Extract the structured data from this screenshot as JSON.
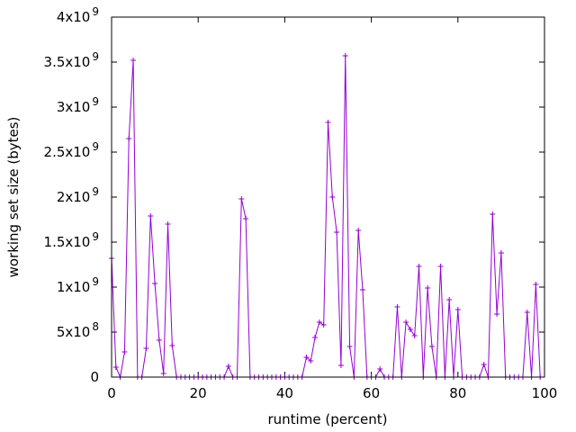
{
  "chart_data": {
    "type": "line",
    "xlabel": "runtime (percent)",
    "ylabel": "working set size (bytes)",
    "xlim": [
      0,
      100
    ],
    "ylim": [
      0,
      4000000000
    ],
    "x_ticks": [
      0,
      20,
      40,
      60,
      80,
      100
    ],
    "x_tick_labels": [
      "0",
      "20",
      "40",
      "60",
      "80",
      "100"
    ],
    "y_ticks": [
      {
        "value": 0,
        "mantissa": "0",
        "exp": ""
      },
      {
        "value": 500000000,
        "mantissa": "5x10",
        "exp": "8"
      },
      {
        "value": 1000000000,
        "mantissa": "1x10",
        "exp": "9"
      },
      {
        "value": 1500000000,
        "mantissa": "1.5x10",
        "exp": "9"
      },
      {
        "value": 2000000000,
        "mantissa": "2x10",
        "exp": "9"
      },
      {
        "value": 2500000000,
        "mantissa": "2.5x10",
        "exp": "9"
      },
      {
        "value": 3000000000,
        "mantissa": "3x10",
        "exp": "9"
      },
      {
        "value": 3500000000,
        "mantissa": "3.5x10",
        "exp": "9"
      },
      {
        "value": 4000000000,
        "mantissa": "4x10",
        "exp": "9"
      }
    ],
    "grid": false,
    "legend": "none",
    "series": [
      {
        "color": "#9400d3",
        "marker": "plus",
        "x": [
          0,
          1,
          2,
          3,
          4,
          5,
          6,
          7,
          8,
          9,
          10,
          11,
          12,
          13,
          14,
          15,
          16,
          17,
          18,
          19,
          20,
          21,
          22,
          23,
          24,
          25,
          26,
          27,
          28,
          29,
          30,
          31,
          32,
          33,
          34,
          35,
          36,
          37,
          38,
          39,
          40,
          41,
          42,
          43,
          44,
          45,
          46,
          47,
          48,
          49,
          50,
          51,
          52,
          53,
          54,
          55,
          56,
          57,
          58,
          59,
          60,
          61,
          62,
          63,
          64,
          65,
          66,
          67,
          68,
          69,
          70,
          71,
          72,
          73,
          74,
          75,
          76,
          77,
          78,
          79,
          80,
          81,
          82,
          83,
          84,
          85,
          86,
          87,
          88,
          89,
          90,
          91,
          92,
          93,
          94,
          95,
          96,
          97,
          98,
          99
        ],
        "y": [
          1320000000,
          110000000,
          0,
          280000000,
          2650000000,
          3520000000,
          0,
          0,
          320000000,
          1790000000,
          1040000000,
          410000000,
          40000000,
          1700000000,
          350000000,
          0,
          0,
          0,
          0,
          0,
          0,
          0,
          0,
          0,
          0,
          0,
          0,
          120000000,
          0,
          0,
          1980000000,
          1760000000,
          0,
          0,
          0,
          0,
          0,
          0,
          0,
          0,
          0,
          0,
          0,
          0,
          0,
          220000000,
          180000000,
          440000000,
          610000000,
          580000000,
          2830000000,
          2000000000,
          1610000000,
          130000000,
          3570000000,
          340000000,
          0,
          1630000000,
          970000000,
          0,
          0,
          0,
          90000000,
          0,
          0,
          0,
          780000000,
          0,
          610000000,
          530000000,
          460000000,
          1230000000,
          0,
          990000000,
          340000000,
          0,
          1230000000,
          0,
          860000000,
          0,
          750000000,
          0,
          0,
          0,
          0,
          0,
          140000000,
          0,
          1810000000,
          700000000,
          1380000000,
          0,
          0,
          0,
          0,
          0,
          720000000,
          0,
          1030000000,
          0
        ]
      }
    ]
  }
}
